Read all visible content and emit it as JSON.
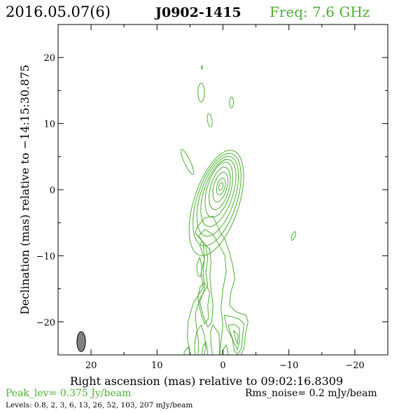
{
  "header": {
    "date": "2016.05.07(6)",
    "source": "J0902-1415",
    "freq": "Freq: 7.6 GHz"
  },
  "footer": {
    "peak": "Peak_lev=  0.375 Jy/beam",
    "rms": "Rms_noise=  0.2 mJy/beam",
    "levels": "Levels: 0.8,   2,   3,   6,  13,  26,  52, 103, 207 mJy/beam"
  },
  "colors": {
    "contour": "#4caf32",
    "beam": "#808080",
    "axis": "#000000"
  },
  "chart_data": {
    "type": "contour",
    "xlabel": "Right ascension (mas) relative to 09:02:16.8309",
    "ylabel": "Declination (mas) relative to −14:15:30.875",
    "xlim": [
      25,
      -25
    ],
    "ylim": [
      -25,
      25
    ],
    "xticks": [
      20,
      10,
      0,
      -10,
      -20
    ],
    "xtick_labels": [
      "20",
      "10",
      "0",
      "−10",
      "−20"
    ],
    "yticks": [
      20,
      10,
      0,
      -10,
      -20
    ],
    "ytick_labels": [
      "20",
      "10",
      "0",
      "−10",
      "−20"
    ],
    "levels_mJy": [
      0.8,
      2,
      3,
      6,
      13,
      26,
      52,
      103,
      207
    ],
    "peak_Jy_per_beam": 0.375,
    "rms_mJy_per_beam": 0.2,
    "core": {
      "x": 0.3,
      "y": 0.5
    },
    "beam": {
      "x": 21.5,
      "y": -23.0,
      "major": 1.5,
      "minor": 0.65,
      "pa_deg": 0
    },
    "contours": [
      {
        "kind": "ellipse",
        "x": 1.0,
        "y": -2.0,
        "rx": 3.4,
        "ry": 8.3,
        "rot": 18
      },
      {
        "kind": "ellipse",
        "x": 0.9,
        "y": -1.5,
        "rx": 3.0,
        "ry": 7.3,
        "rot": 18
      },
      {
        "kind": "ellipse",
        "x": 0.8,
        "y": -1.0,
        "rx": 2.6,
        "ry": 6.3,
        "rot": 18
      },
      {
        "kind": "ellipse",
        "x": 0.7,
        "y": -0.5,
        "rx": 2.2,
        "ry": 5.3,
        "rot": 18
      },
      {
        "kind": "ellipse",
        "x": 0.6,
        "y": 0.0,
        "rx": 1.8,
        "ry": 4.3,
        "rot": 16
      },
      {
        "kind": "ellipse",
        "x": 0.5,
        "y": 0.2,
        "rx": 1.4,
        "ry": 3.3,
        "rot": 15
      },
      {
        "kind": "ellipse",
        "x": 0.4,
        "y": 0.4,
        "rx": 1.0,
        "ry": 2.3,
        "rot": 15
      },
      {
        "kind": "ellipse",
        "x": 0.3,
        "y": 0.5,
        "rx": 0.6,
        "ry": 1.3,
        "rot": 15
      },
      {
        "kind": "ellipse",
        "x": 0.3,
        "y": 0.5,
        "rx": 0.3,
        "ry": 0.6,
        "rot": 15
      },
      {
        "kind": "ellipse",
        "x": 3.3,
        "y": 14.7,
        "rx": 0.5,
        "ry": 1.4,
        "rot": 0
      },
      {
        "kind": "ellipse",
        "x": -1.3,
        "y": 13.2,
        "rx": 0.3,
        "ry": 0.8,
        "rot": 0
      },
      {
        "kind": "ellipse",
        "x": 2.0,
        "y": 10.5,
        "rx": 0.35,
        "ry": 1.0,
        "rot": -10
      },
      {
        "kind": "ellipse",
        "x": 3.2,
        "y": 18.5,
        "rx": 0.1,
        "ry": 0.3,
        "rot": 0
      },
      {
        "kind": "ellipse",
        "x": 5.4,
        "y": 4.2,
        "rx": 0.45,
        "ry": 2.1,
        "rot": -25
      },
      {
        "kind": "ellipse",
        "x": -10.7,
        "y": -7.0,
        "rx": 0.25,
        "ry": 0.7,
        "rot": 20
      },
      {
        "kind": "poly",
        "pts": [
          [
            4.2,
            -6.5
          ],
          [
            3.0,
            -8.0
          ],
          [
            2.8,
            -10.5
          ],
          [
            3.3,
            -12.5
          ],
          [
            3.0,
            -14.8
          ],
          [
            4.5,
            -17.2
          ],
          [
            5.3,
            -20.0
          ],
          [
            5.4,
            -22.5
          ],
          [
            5.0,
            -24.5
          ],
          [
            5.0,
            -25.5
          ],
          [
            -2.5,
            -25.5
          ],
          [
            -3.2,
            -24.0
          ],
          [
            -3.4,
            -22.0
          ],
          [
            -3.8,
            -20.0
          ],
          [
            -3.5,
            -19.0
          ],
          [
            -2.0,
            -18.5
          ],
          [
            -1.0,
            -17.5
          ],
          [
            -1.2,
            -15.5
          ],
          [
            -1.8,
            -13.5
          ],
          [
            -1.5,
            -11.5
          ],
          [
            -1.0,
            -9.5
          ],
          [
            -0.3,
            -7.5
          ],
          [
            0.4,
            -6.5
          ],
          [
            1.5,
            -4.0
          ],
          [
            2.8,
            -4.3
          ],
          [
            3.8,
            -5.5
          ]
        ]
      },
      {
        "kind": "poly",
        "pts": [
          [
            3.7,
            -7.0
          ],
          [
            2.6,
            -8.5
          ],
          [
            2.3,
            -10.5
          ],
          [
            2.6,
            -12.5
          ],
          [
            2.3,
            -14.5
          ],
          [
            3.5,
            -16.5
          ],
          [
            4.2,
            -18.8
          ],
          [
            4.0,
            -21.0
          ],
          [
            3.7,
            -23.0
          ],
          [
            3.8,
            -25.5
          ],
          [
            0.5,
            -25.5
          ],
          [
            0.3,
            -23.0
          ],
          [
            0.0,
            -20.5
          ],
          [
            0.3,
            -18.0
          ],
          [
            0.0,
            -15.0
          ],
          [
            -0.5,
            -12.5
          ],
          [
            -0.3,
            -10.0
          ],
          [
            0.5,
            -8.5
          ],
          [
            1.5,
            -6.8
          ],
          [
            2.7,
            -6.0
          ]
        ]
      },
      {
        "kind": "poly",
        "pts": [
          [
            3.2,
            -7.8
          ],
          [
            2.0,
            -9.0
          ],
          [
            1.8,
            -11.0
          ],
          [
            2.0,
            -13.0
          ],
          [
            1.8,
            -15.0
          ],
          [
            1.5,
            -17.5
          ],
          [
            1.7,
            -20.0
          ],
          [
            2.3,
            -20.8
          ],
          [
            3.0,
            -19.0
          ],
          [
            3.5,
            -17.0
          ],
          [
            2.8,
            -15.0
          ],
          [
            3.0,
            -12.5
          ],
          [
            2.8,
            -10.5
          ],
          [
            3.5,
            -8.5
          ]
        ]
      },
      {
        "kind": "poly",
        "pts": [
          [
            2.8,
            -14.0
          ],
          [
            2.0,
            -15.5
          ],
          [
            2.3,
            -17.5
          ],
          [
            2.2,
            -19.5
          ],
          [
            2.8,
            -20.3
          ],
          [
            3.4,
            -18.5
          ],
          [
            3.8,
            -16.5
          ],
          [
            3.5,
            -14.8
          ]
        ]
      },
      {
        "kind": "poly",
        "pts": [
          [
            3.3,
            -20.5
          ],
          [
            2.8,
            -22.0
          ],
          [
            2.6,
            -24.0
          ],
          [
            3.0,
            -25.5
          ],
          [
            4.2,
            -25.5
          ],
          [
            4.3,
            -23.5
          ],
          [
            4.0,
            -21.5
          ]
        ]
      },
      {
        "kind": "poly",
        "pts": [
          [
            2.6,
            -23.0
          ],
          [
            2.3,
            -24.5
          ],
          [
            2.4,
            -25.5
          ],
          [
            3.2,
            -25.5
          ],
          [
            3.1,
            -24.0
          ]
        ]
      },
      {
        "kind": "poly",
        "pts": [
          [
            1.5,
            -20.5
          ],
          [
            0.6,
            -21.8
          ],
          [
            0.5,
            -23.5
          ],
          [
            0.6,
            -25.5
          ],
          [
            1.5,
            -25.5
          ],
          [
            1.8,
            -23.5
          ],
          [
            1.9,
            -21.5
          ]
        ]
      },
      {
        "kind": "poly",
        "pts": [
          [
            -0.2,
            -19.0
          ],
          [
            -0.6,
            -21.0
          ],
          [
            -1.4,
            -22.5
          ],
          [
            -1.7,
            -24.3
          ],
          [
            -2.2,
            -25.0
          ],
          [
            -2.8,
            -24.0
          ],
          [
            -3.0,
            -22.0
          ],
          [
            -3.2,
            -20.3
          ],
          [
            -2.5,
            -19.6
          ],
          [
            -1.3,
            -19.2
          ]
        ]
      },
      {
        "kind": "poly",
        "pts": [
          [
            -0.8,
            -20.5
          ],
          [
            -1.2,
            -21.8
          ],
          [
            -1.7,
            -23.2
          ],
          [
            -2.2,
            -24.2
          ],
          [
            -2.5,
            -23.0
          ],
          [
            -2.5,
            -21.0
          ],
          [
            -1.8,
            -20.4
          ]
        ]
      },
      {
        "kind": "poly",
        "pts": [
          [
            -1.6,
            -21.3
          ],
          [
            -1.9,
            -22.5
          ],
          [
            -2.2,
            -23.4
          ],
          [
            -2.3,
            -22.0
          ]
        ]
      },
      {
        "kind": "poly",
        "pts": [
          [
            -0.5,
            -23.5
          ],
          [
            -0.8,
            -24.6
          ],
          [
            -0.6,
            -25.5
          ],
          [
            0.0,
            -25.5
          ],
          [
            0.1,
            -24.4
          ]
        ]
      },
      {
        "kind": "poly",
        "pts": [
          [
            5.3,
            -23.8
          ],
          [
            5.0,
            -24.7
          ],
          [
            5.2,
            -25.5
          ],
          [
            5.8,
            -25.5
          ],
          [
            5.9,
            -24.6
          ]
        ]
      },
      {
        "kind": "poly",
        "pts": [
          [
            3.5,
            -10.2
          ],
          [
            3.2,
            -11.8
          ],
          [
            3.4,
            -13.2
          ],
          [
            3.8,
            -13.0
          ],
          [
            4.0,
            -11.5
          ]
        ]
      }
    ]
  }
}
